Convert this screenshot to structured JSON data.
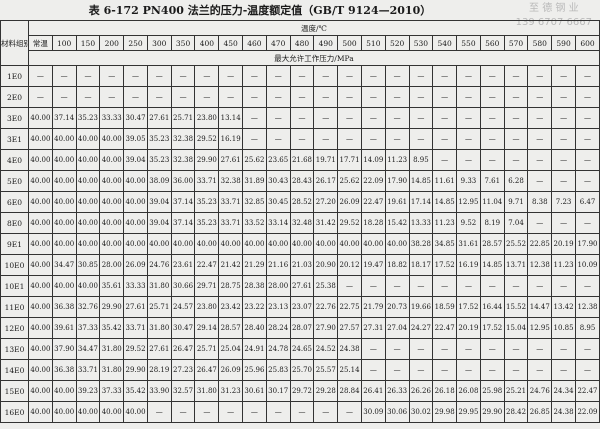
{
  "title": "表 6-172   PN400 法兰的压力-温度额定值（GB/T 9124—2010）",
  "watermark": {
    "name": "至 德 钢 业",
    "phone": "139 6707 6667"
  },
  "header": {
    "group_label": "材料组别",
    "temp_label": "温度/℃",
    "pressure_label": "最大允许工作压力/MPa",
    "temps": [
      "常温",
      "100",
      "150",
      "200",
      "250",
      "300",
      "350",
      "400",
      "450",
      "460",
      "470",
      "480",
      "490",
      "500",
      "510",
      "520",
      "530",
      "540",
      "550",
      "560",
      "570",
      "580",
      "590",
      "600"
    ]
  },
  "rows": [
    {
      "group": "1E0",
      "values": [
        "—",
        "—",
        "—",
        "—",
        "—",
        "—",
        "—",
        "—",
        "—",
        "—",
        "—",
        "—",
        "—",
        "—",
        "—",
        "—",
        "—",
        "—",
        "—",
        "—",
        "—",
        "—",
        "—",
        "—"
      ]
    },
    {
      "group": "2E0",
      "values": [
        "—",
        "—",
        "—",
        "—",
        "—",
        "—",
        "—",
        "—",
        "—",
        "—",
        "—",
        "—",
        "—",
        "—",
        "—",
        "—",
        "—",
        "—",
        "—",
        "—",
        "—",
        "—",
        "—",
        "—"
      ]
    },
    {
      "group": "3E0",
      "values": [
        "40.00",
        "37.14",
        "35.23",
        "33.33",
        "30.47",
        "27.61",
        "25.71",
        "23.80",
        "13.14",
        "—",
        "—",
        "—",
        "—",
        "—",
        "—",
        "—",
        "—",
        "—",
        "—",
        "—",
        "—",
        "—",
        "—",
        "—"
      ]
    },
    {
      "group": "3E1",
      "values": [
        "40.00",
        "40.00",
        "40.00",
        "40.00",
        "39.05",
        "35.23",
        "32.38",
        "29.52",
        "16.19",
        "—",
        "—",
        "—",
        "—",
        "—",
        "—",
        "—",
        "—",
        "—",
        "—",
        "—",
        "—",
        "—",
        "—",
        "—"
      ]
    },
    {
      "group": "4E0",
      "values": [
        "40.00",
        "40.00",
        "40.00",
        "40.00",
        "39.04",
        "35.23",
        "32.38",
        "29.90",
        "27.61",
        "25.62",
        "23.65",
        "21.68",
        "19.71",
        "17.71",
        "14.09",
        "11.23",
        "8.95",
        "—",
        "—",
        "—",
        "—",
        "—",
        "—",
        "—"
      ]
    },
    {
      "group": "5E0",
      "values": [
        "40.00",
        "40.00",
        "40.00",
        "40.00",
        "40.00",
        "38.09",
        "36.00",
        "33.71",
        "32.38",
        "31.89",
        "30.43",
        "28.43",
        "26.17",
        "25.62",
        "22.09",
        "17.90",
        "14.85",
        "11.61",
        "9.33",
        "7.61",
        "6.28",
        "—",
        "—",
        "—"
      ]
    },
    {
      "group": "6E0",
      "values": [
        "40.00",
        "40.00",
        "40.00",
        "40.00",
        "40.00",
        "39.04",
        "37.14",
        "35.23",
        "33.71",
        "32.85",
        "30.45",
        "28.52",
        "27.20",
        "26.09",
        "22.47",
        "19.61",
        "17.14",
        "14.85",
        "12.95",
        "11.04",
        "9.71",
        "8.38",
        "7.23",
        "6.47"
      ]
    },
    {
      "group": "8E0",
      "values": [
        "40.00",
        "40.00",
        "40.00",
        "40.00",
        "40.00",
        "39.04",
        "37.14",
        "35.23",
        "33.71",
        "33.52",
        "33.14",
        "32.48",
        "31.42",
        "29.52",
        "18.28",
        "15.42",
        "13.33",
        "11.23",
        "9.52",
        "8.19",
        "7.04",
        "—",
        "—",
        "—"
      ]
    },
    {
      "group": "9E1",
      "values": [
        "40.00",
        "40.00",
        "40.00",
        "40.00",
        "40.00",
        "40.00",
        "40.00",
        "40.00",
        "40.00",
        "40.00",
        "40.00",
        "40.00",
        "40.00",
        "40.00",
        "40.00",
        "40.00",
        "38.28",
        "34.85",
        "31.61",
        "28.57",
        "25.52",
        "22.85",
        "20.19",
        "17.90"
      ]
    },
    {
      "group": "10E0",
      "values": [
        "40.00",
        "34.47",
        "30.85",
        "28.00",
        "26.09",
        "24.76",
        "23.61",
        "22.47",
        "21.42",
        "21.29",
        "21.16",
        "21.03",
        "20.90",
        "20.12",
        "19.47",
        "18.82",
        "18.17",
        "17.52",
        "16.19",
        "14.85",
        "13.71",
        "12.38",
        "11.23",
        "10.09"
      ]
    },
    {
      "group": "10E1",
      "values": [
        "40.00",
        "40.00",
        "40.00",
        "35.61",
        "33.33",
        "31.80",
        "30.66",
        "29.71",
        "28.75",
        "28.38",
        "28.00",
        "27.61",
        "25.38",
        "—",
        "—",
        "—",
        "—",
        "—",
        "—",
        "—",
        "—",
        "—",
        "—",
        "—"
      ]
    },
    {
      "group": "11E0",
      "values": [
        "40.00",
        "36.38",
        "32.76",
        "29.90",
        "27.61",
        "25.71",
        "24.57",
        "23.80",
        "23.42",
        "23.22",
        "23.13",
        "23.07",
        "22.76",
        "22.75",
        "21.79",
        "20.73",
        "19.66",
        "18.59",
        "17.52",
        "16.44",
        "15.52",
        "14.47",
        "13.42",
        "12.38"
      ]
    },
    {
      "group": "12E0",
      "values": [
        "40.00",
        "39.61",
        "37.33",
        "35.42",
        "33.71",
        "31.80",
        "30.47",
        "29.14",
        "28.57",
        "28.40",
        "28.24",
        "28.07",
        "27.90",
        "27.57",
        "27.31",
        "27.04",
        "24.27",
        "22.47",
        "20.19",
        "17.52",
        "15.04",
        "12.95",
        "10.85",
        "8.95"
      ]
    },
    {
      "group": "13E0",
      "values": [
        "40.00",
        "37.90",
        "34.47",
        "31.80",
        "29.52",
        "27.61",
        "26.47",
        "25.71",
        "25.04",
        "24.91",
        "24.78",
        "24.65",
        "24.52",
        "24.38",
        "—",
        "—",
        "—",
        "—",
        "—",
        "—",
        "—",
        "—",
        "—",
        "—"
      ]
    },
    {
      "group": "14E0",
      "values": [
        "40.00",
        "36.38",
        "33.71",
        "31.80",
        "29.90",
        "28.19",
        "27.23",
        "26.47",
        "26.09",
        "25.96",
        "25.83",
        "25.70",
        "25.57",
        "25.14",
        "—",
        "—",
        "—",
        "—",
        "—",
        "—",
        "—",
        "—",
        "—",
        "—"
      ]
    },
    {
      "group": "15E0",
      "values": [
        "40.00",
        "40.00",
        "39.23",
        "37.33",
        "35.42",
        "33.90",
        "32.57",
        "31.80",
        "31.23",
        "30.61",
        "30.17",
        "29.72",
        "29.28",
        "28.84",
        "26.41",
        "26.33",
        "26.26",
        "26.18",
        "26.08",
        "25.98",
        "25.21",
        "24.76",
        "24.34",
        "22.47"
      ]
    },
    {
      "group": "16E0",
      "values": [
        "40.00",
        "40.00",
        "40.00",
        "40.00",
        "40.00",
        "—",
        "—",
        "—",
        "—",
        "—",
        "—",
        "—",
        "—",
        "—",
        "30.09",
        "30.06",
        "30.02",
        "29.98",
        "29.95",
        "29.90",
        "28.42",
        "26.85",
        "24.38",
        "22.09"
      ]
    }
  ]
}
